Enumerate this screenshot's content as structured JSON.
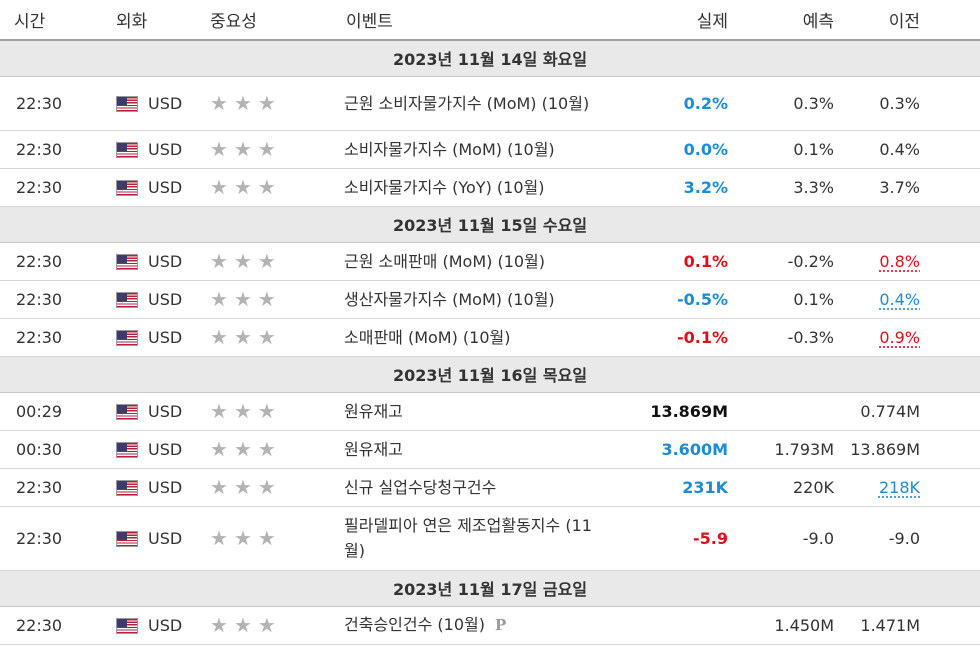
{
  "header": {
    "time": "시간",
    "currency": "외화",
    "importance": "중요성",
    "event": "이벤트",
    "actual": "실제",
    "forecast": "예측",
    "previous": "이전"
  },
  "colors": {
    "positive": "#1a8cd8",
    "negative": "#e0101a",
    "neutral": "#111111",
    "star": "#b3b3b3",
    "day_header_bg": "#e9e9e9"
  },
  "days": [
    {
      "label": "2023년 11월 14일 화요일",
      "rows": [
        {
          "time": "22:30",
          "currency": "USD",
          "event": "근원 소비자물가지수 (MoM) (10월)",
          "actual": "0.2%",
          "forecast": "0.3%",
          "previous": "0.3%"
        },
        {
          "time": "22:30",
          "currency": "USD",
          "event": "소비자물가지수 (MoM) (10월)",
          "actual": "0.0%",
          "forecast": "0.1%",
          "previous": "0.4%"
        },
        {
          "time": "22:30",
          "currency": "USD",
          "event": "소비자물가지수 (YoY) (10월)",
          "actual": "3.2%",
          "forecast": "3.3%",
          "previous": "3.7%"
        }
      ]
    },
    {
      "label": "2023년 11월 15일 수요일",
      "rows": [
        {
          "time": "22:30",
          "currency": "USD",
          "event": "근원 소매판매 (MoM) (10월)",
          "actual": "0.1%",
          "forecast": "-0.2%",
          "previous": "0.8%"
        },
        {
          "time": "22:30",
          "currency": "USD",
          "event": "생산자물가지수 (MoM) (10월)",
          "actual": "-0.5%",
          "forecast": "0.1%",
          "previous": "0.4%"
        },
        {
          "time": "22:30",
          "currency": "USD",
          "event": "소매판매 (MoM) (10월)",
          "actual": "-0.1%",
          "forecast": "-0.3%",
          "previous": "0.9%"
        }
      ]
    },
    {
      "label": "2023년 11월 16일 목요일",
      "rows": [
        {
          "time": "00:29",
          "currency": "USD",
          "event": "원유재고",
          "actual": "13.869M",
          "forecast": "",
          "previous": "0.774M"
        },
        {
          "time": "00:30",
          "currency": "USD",
          "event": "원유재고",
          "actual": "3.600M",
          "forecast": "1.793M",
          "previous": "13.869M"
        },
        {
          "time": "22:30",
          "currency": "USD",
          "event": "신규 실업수당청구건수",
          "actual": "231K",
          "forecast": "220K",
          "previous": "218K"
        },
        {
          "time": "22:30",
          "currency": "USD",
          "event": "필라델피아 연은 제조업활동지수 (11월)",
          "actual": "-5.9",
          "forecast": "-9.0",
          "previous": "-9.0"
        }
      ]
    },
    {
      "label": "2023년 11월 17일 금요일",
      "rows": [
        {
          "time": "22:30",
          "currency": "USD",
          "event": "건축승인건수 (10월)",
          "actual": "",
          "forecast": "1.450M",
          "previous": "1.471M",
          "prelim_icon": "P"
        }
      ]
    }
  ]
}
